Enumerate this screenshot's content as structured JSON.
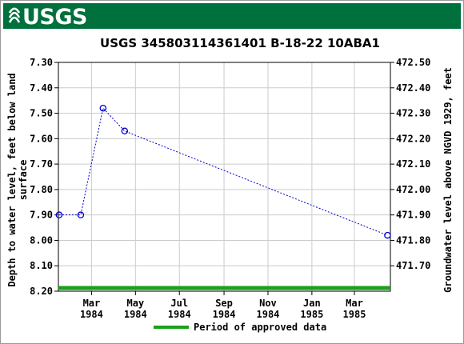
{
  "header": {
    "logo_text": "USGS",
    "colors": {
      "banner": "#00703c",
      "logo": "#ffffff"
    },
    "icons": {
      "logo": "usgs-wave-logo-icon"
    }
  },
  "chart_data": {
    "type": "line",
    "title": "USGS 345803114361401 B-18-22 10ABA1",
    "ylabel": [
      "Depth to water level, feet below land",
      "surface"
    ],
    "y2label": "Groundwater level above NGVD 1929, feet",
    "ylim": [
      7.3,
      8.2
    ],
    "y_ticks": [
      "7.30",
      "7.40",
      "7.50",
      "7.60",
      "7.70",
      "7.80",
      "7.90",
      "8.00",
      "8.10",
      "8.20"
    ],
    "y_tick_values": [
      7.3,
      7.4,
      7.5,
      7.6,
      7.7,
      7.8,
      7.9,
      8.0,
      8.1,
      8.2
    ],
    "y2_ticks": [
      "472.50",
      "472.40",
      "472.30",
      "472.20",
      "472.10",
      "472.00",
      "471.90",
      "471.80",
      "471.70"
    ],
    "y2_tick_values": [
      472.5,
      472.4,
      472.3,
      472.2,
      472.1,
      472.0,
      471.9,
      471.8,
      471.7
    ],
    "y2_offset": 479.8,
    "xlim": [
      "1984-01-15",
      "1985-04-20"
    ],
    "x_ticks": [
      {
        "date": "1984-03-01",
        "line1": "Mar",
        "line2": "1984"
      },
      {
        "date": "1984-05-01",
        "line1": "May",
        "line2": "1984"
      },
      {
        "date": "1984-07-01",
        "line1": "Jul",
        "line2": "1984"
      },
      {
        "date": "1984-09-01",
        "line1": "Sep",
        "line2": "1984"
      },
      {
        "date": "1984-11-01",
        "line1": "Nov",
        "line2": "1984"
      },
      {
        "date": "1985-01-01",
        "line1": "Jan",
        "line2": "1985"
      },
      {
        "date": "1985-03-01",
        "line1": "Mar",
        "line2": "1985"
      }
    ],
    "series": [
      {
        "x": [
          "1984-01-16",
          "1984-02-15",
          "1984-03-17",
          "1984-04-16",
          "1985-04-16"
        ],
        "y": [
          7.9,
          7.9,
          7.48,
          7.57,
          7.98
        ]
      }
    ],
    "approved_period": [
      "1984-01-15",
      "1985-04-20"
    ],
    "legend": {
      "label": "Period of approved data",
      "position": "bottom"
    },
    "grid": true,
    "colors": {
      "series": "#0000cc",
      "approved": "#1aa11a",
      "grid": "#cccccc"
    }
  }
}
